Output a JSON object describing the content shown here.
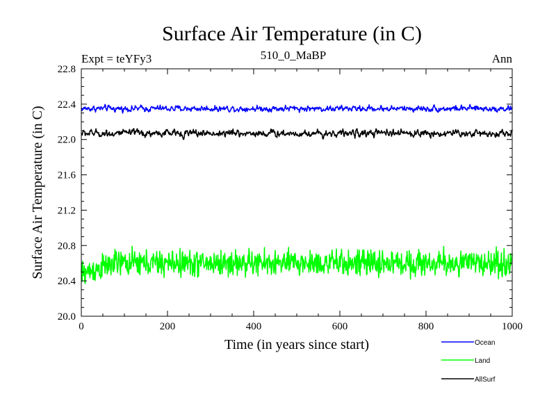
{
  "chart_data": {
    "type": "line",
    "title": "Surface Air Temperature (in C)",
    "subtitle_left": "Expt = teYFy3",
    "subtitle_center": "510_0_MaBP",
    "subtitle_right": "Ann",
    "xlabel": "Time (in years since start)",
    "ylabel": "Surface Air Temperature (in C)",
    "xlim": [
      0,
      1000
    ],
    "ylim": [
      20.0,
      22.8
    ],
    "xticks": [
      0,
      200,
      400,
      600,
      800,
      1000
    ],
    "xtick_labels": [
      "0",
      "200",
      "400",
      "600",
      "800",
      "1000"
    ],
    "yticks": [
      20.0,
      20.4,
      20.8,
      21.2,
      21.6,
      22.0,
      22.4,
      22.8
    ],
    "ytick_labels": [
      "20.0",
      "20.4",
      "20.8",
      "21.2",
      "21.6",
      "22.0",
      "22.4",
      "22.8"
    ],
    "grid": false,
    "legend_position": "bottom-right, below plot",
    "series": [
      {
        "name": "Ocean",
        "color": "#0000ff",
        "mean": 22.35,
        "noise_amplitude": 0.05,
        "years": 1000
      },
      {
        "name": "Land",
        "color": "#00ff00",
        "mean": 20.6,
        "noise_amplitude": 0.2,
        "years": 1000
      },
      {
        "name": "AllSurf",
        "color": "#000000",
        "mean": 22.07,
        "noise_amplitude": 0.06,
        "years": 1000
      }
    ]
  }
}
